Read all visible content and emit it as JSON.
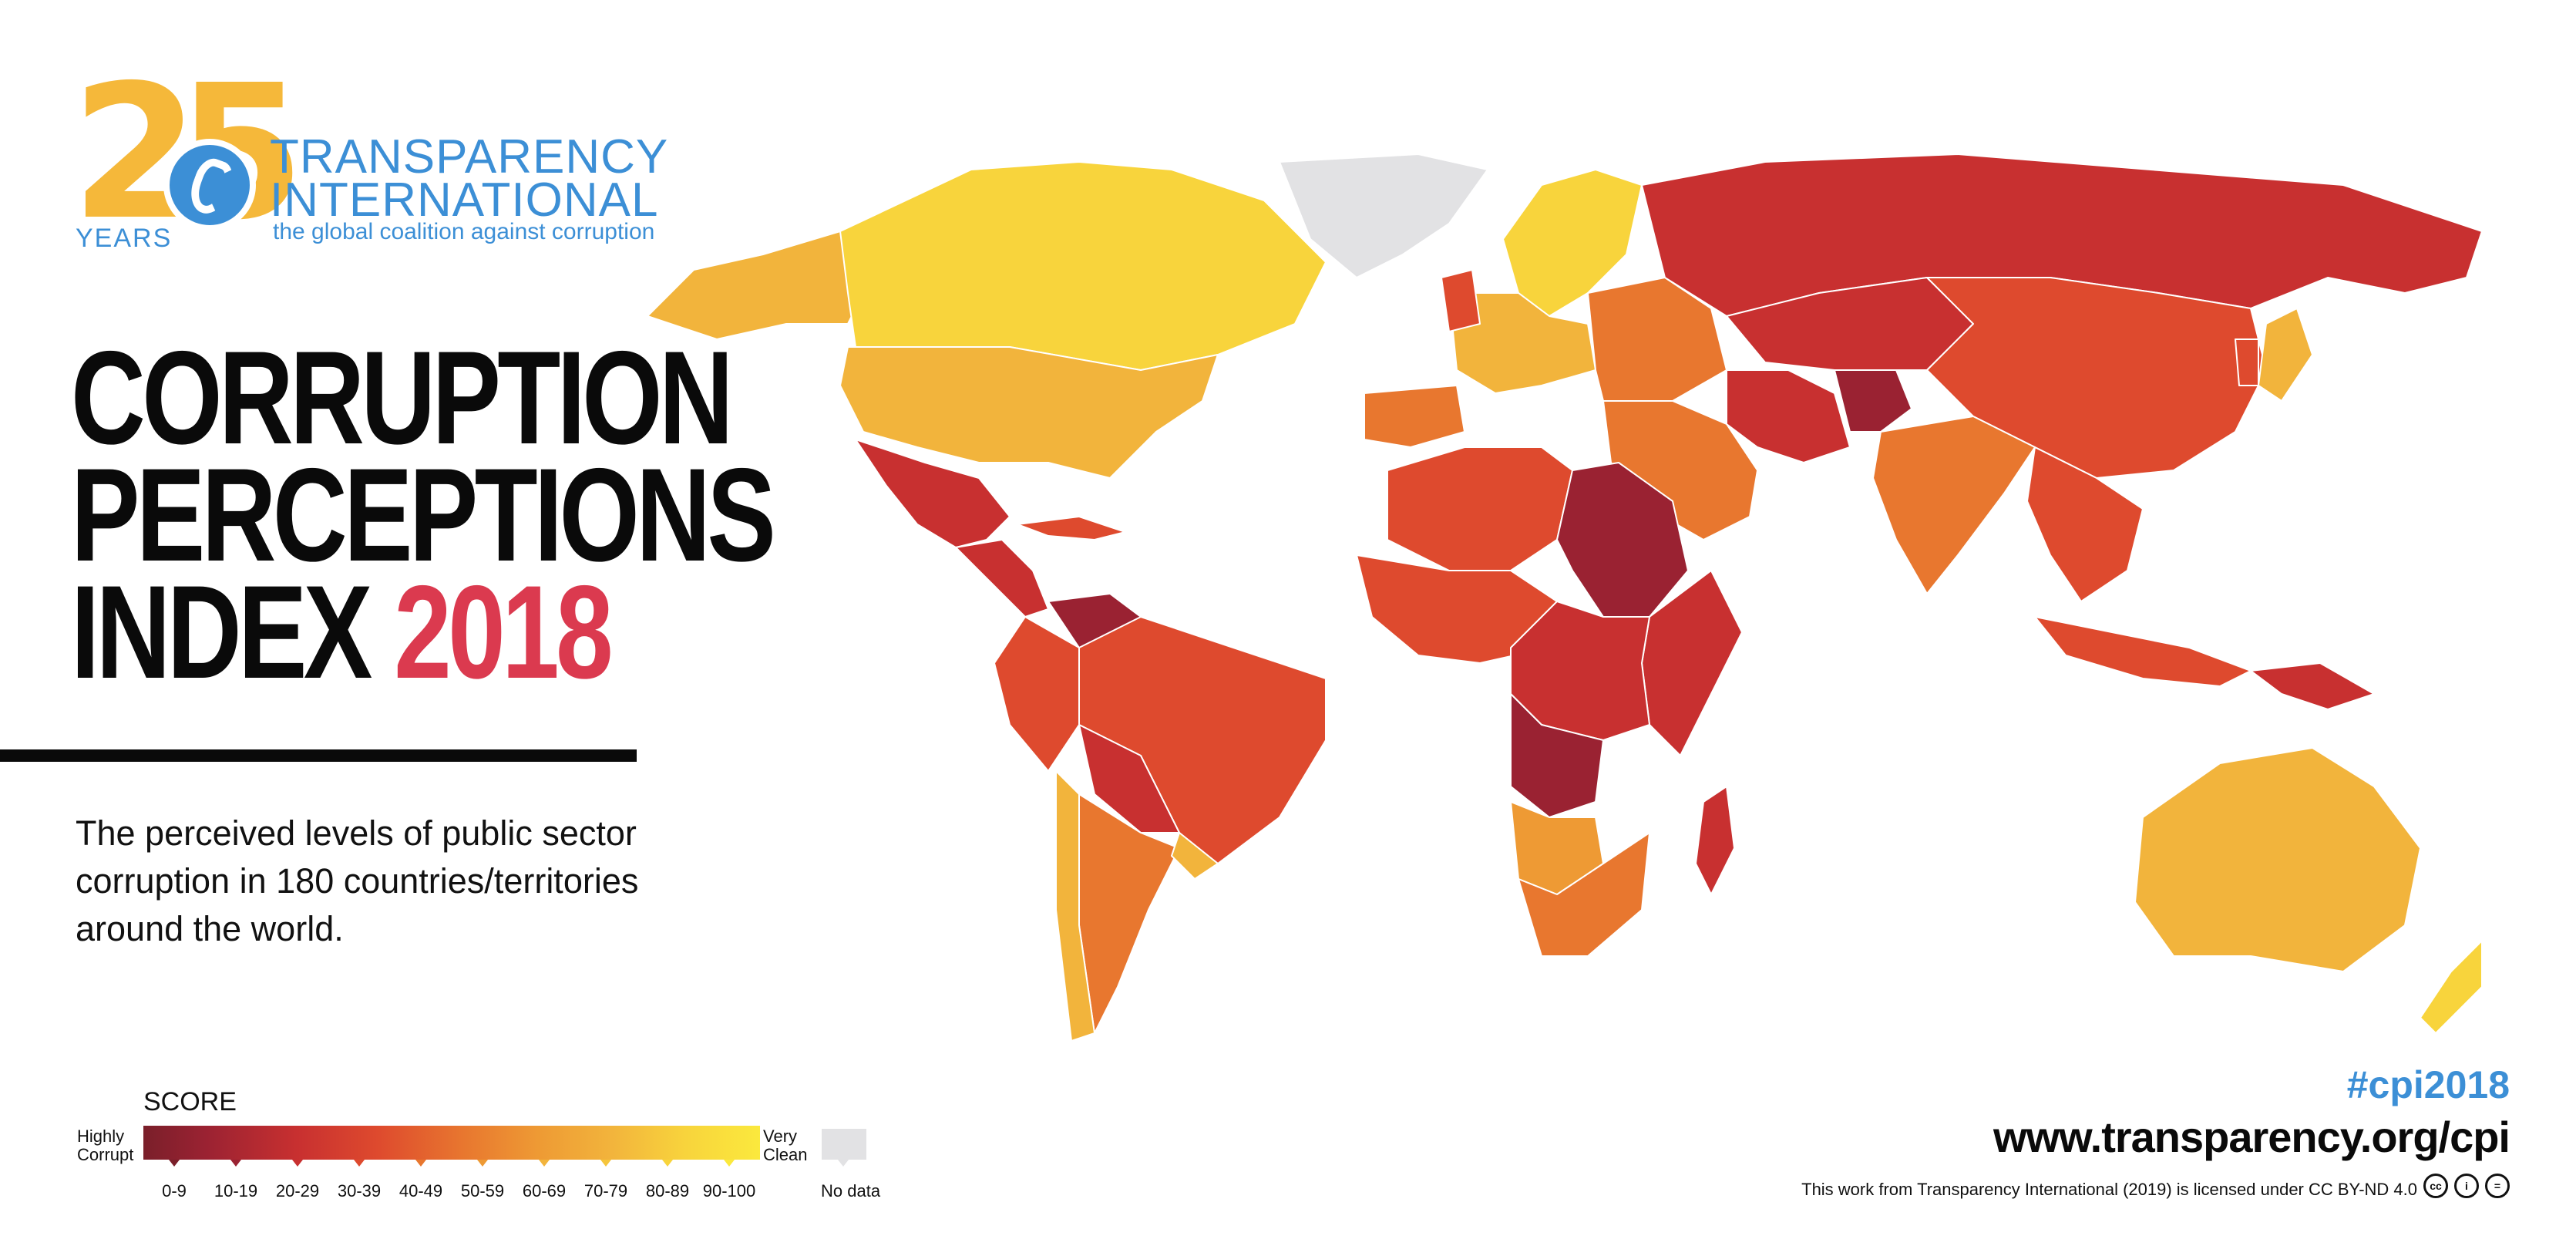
{
  "logo": {
    "number": "25",
    "years": "YEARS",
    "org_line1": "TRANSPARENCY",
    "org_line2": "INTERNATIONAL",
    "tagline": "the global coalition against corruption"
  },
  "title": {
    "line1": "CORRUPTION",
    "line2": "PERCEPTIONS",
    "line3": "INDEX",
    "year": "2018"
  },
  "description": "The perceived levels of public sector corruption in 180 countries/territories around the world.",
  "legend": {
    "title": "SCORE",
    "left_label": "Highly\nCorrupt",
    "right_label": "Very\nClean",
    "ranges": [
      "0-9",
      "10-19",
      "20-29",
      "30-39",
      "40-49",
      "50-59",
      "60-69",
      "70-79",
      "80-89",
      "90-100"
    ],
    "no_data": "No data",
    "colors": [
      "#7a1f2a",
      "#9a2232",
      "#c83030",
      "#de4a2e",
      "#e8772f",
      "#ee9a34",
      "#f2b43c",
      "#f5c53c",
      "#f8d43c",
      "#fbe93d"
    ],
    "no_data_color": "#e2e2e4"
  },
  "footer": {
    "hashtag": "#cpi2018",
    "url": "www.transparency.org/cpi",
    "license": "This work from Transparency International (2019) is licensed under CC BY-ND 4.0"
  },
  "map": {
    "region_colors": {
      "canada": "#f8d43c",
      "usa": "#f2b43c",
      "alaska": "#f2b43c",
      "greenland": "#e2e2e4",
      "mexico": "#c83030",
      "central_america": "#c83030",
      "venezuela": "#9a2232",
      "brazil": "#de4a2e",
      "andes": "#de4a2e",
      "bolivia_paraguay": "#c83030",
      "argentina": "#e8772f",
      "chile": "#f2b43c",
      "uruguay": "#f2b43c",
      "north_europe": "#f8d43c",
      "west_europe": "#f2b43c",
      "east_europe": "#e8772f",
      "iberia": "#e8772f",
      "russia": "#c83030",
      "central_asia": "#c83030",
      "china": "#de4a2e",
      "india": "#e8772f",
      "southeast_asia": "#de4a2e",
      "middle_east": "#e8772f",
      "iran": "#c83030",
      "afghanistan": "#9a2232",
      "north_africa": "#de4a2e",
      "libya_sudan": "#9a2232",
      "west_africa": "#de4a2e",
      "central_africa": "#c83030",
      "angola_congo": "#9a2232",
      "east_africa": "#c83030",
      "southern_africa": "#e8772f",
      "namibia_botswana": "#ee9a34",
      "madagascar": "#c83030",
      "australia": "#f2b43c",
      "new_zealand": "#f8d43c",
      "japan": "#f2b43c",
      "indonesia": "#de4a2e",
      "png": "#c83030"
    }
  }
}
